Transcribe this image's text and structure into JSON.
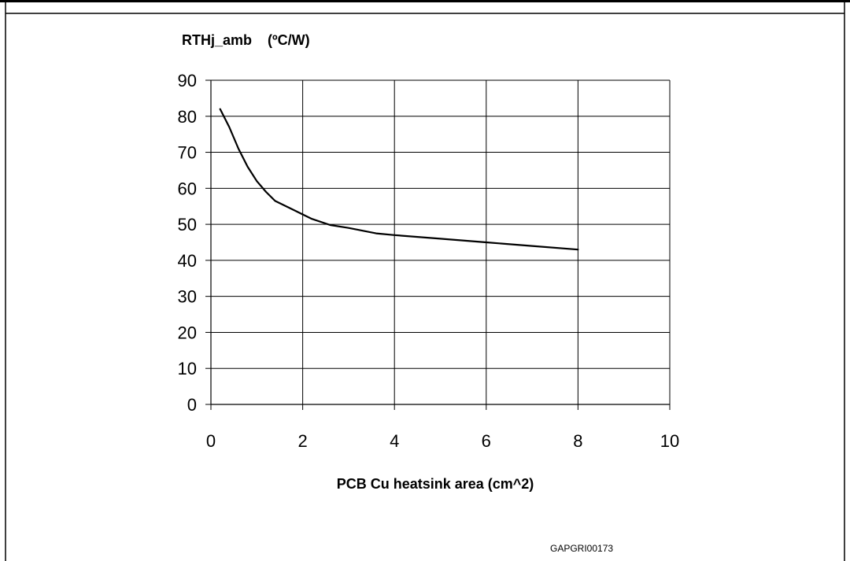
{
  "chart_data": {
    "type": "line",
    "ylabel": "RTHj_amb    (ºC/W)",
    "xlabel": "PCB Cu heatsink area (cm^2)",
    "figure_code": "GAPGRI00173",
    "xlim": [
      0,
      10
    ],
    "ylim": [
      0,
      90
    ],
    "x_ticks": [
      "0",
      "2",
      "4",
      "6",
      "8",
      "10"
    ],
    "y_ticks": [
      "0",
      "10",
      "20",
      "30",
      "40",
      "50",
      "60",
      "70",
      "80",
      "90"
    ],
    "grid": true,
    "line_color": "#000000",
    "series": [
      {
        "points": [
          [
            0.2,
            82
          ],
          [
            0.4,
            77
          ],
          [
            0.6,
            71
          ],
          [
            0.8,
            66
          ],
          [
            1.0,
            62
          ],
          [
            1.2,
            59
          ],
          [
            1.4,
            56.5
          ],
          [
            1.8,
            54
          ],
          [
            2.2,
            51.5
          ],
          [
            2.6,
            49.8
          ],
          [
            3.0,
            49
          ],
          [
            3.6,
            47.5
          ],
          [
            4.0,
            47
          ],
          [
            5.0,
            46
          ],
          [
            6.0,
            45
          ],
          [
            7.0,
            44
          ],
          [
            8.0,
            43
          ]
        ]
      }
    ]
  }
}
